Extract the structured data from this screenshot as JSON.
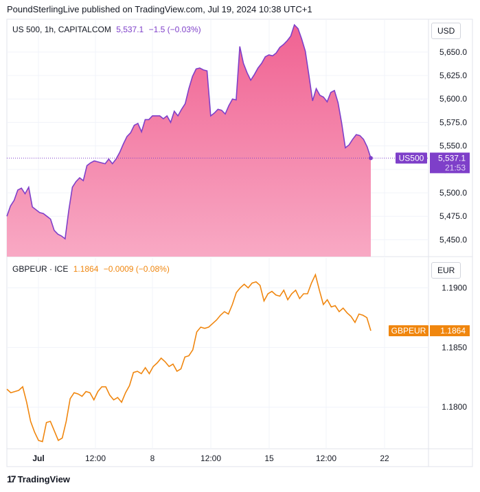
{
  "header": {
    "published": "PoundSterlingLive published on TradingView.com, Jul 19, 2024 10:38 UTC+1"
  },
  "footer": {
    "brand": "TradingView"
  },
  "colors": {
    "us500": "#7e3fc9",
    "us500_fill_top": "#f06292",
    "us500_fill_bottom": "#f8a9c4",
    "gbpeur": "#f0860e",
    "grid": "#f0f3fa",
    "border": "#e0e3eb"
  },
  "panes": {
    "us500": {
      "symbol": "US 500, 1h, CAPITALCOM",
      "last": "5,537.1",
      "change": "−1.5 (−0.03%)",
      "currency": "USD",
      "tag": "US500",
      "tag_value": "5,537.1",
      "tag_countdown": "21:53"
    },
    "gbpeur": {
      "symbol": "GBPEUR · ICE",
      "last": "1.1864",
      "change": "−0.0009 (−0.08%)",
      "currency": "EUR",
      "tag": "GBPEUR",
      "tag_value": "1.1864"
    }
  },
  "chart_data": [
    {
      "type": "area",
      "title": "US 500, 1h, CAPITALCOM",
      "ylim": [
        5432,
        5685
      ],
      "yticks": [
        "5,450.0",
        "5,475.0",
        "5,500.0",
        "5,525.0",
        "5,550.0",
        "5,575.0",
        "5,600.0",
        "5,625.0",
        "5,650.0"
      ],
      "ytick_values": [
        5450,
        5475,
        5500,
        5525,
        5550,
        5575,
        5600,
        5625,
        5650
      ],
      "x": [
        0,
        2,
        4,
        6,
        8,
        10,
        12,
        14,
        16,
        18,
        20,
        22,
        24,
        26,
        28,
        30,
        32,
        34,
        36,
        38,
        40,
        42,
        44,
        46,
        48,
        50,
        52,
        54,
        56,
        58,
        60,
        62,
        64,
        66,
        68,
        70,
        72,
        74,
        76,
        78,
        80,
        82,
        84,
        86,
        88,
        90,
        92,
        94,
        96,
        98,
        100,
        102,
        104,
        106,
        108,
        110,
        112,
        114,
        116,
        118,
        120,
        122,
        124,
        126,
        128,
        130,
        132,
        134,
        136,
        138,
        140,
        142,
        144,
        146,
        148,
        150,
        152,
        154,
        156,
        158,
        160,
        162,
        164,
        166,
        168,
        170,
        172,
        174,
        176,
        178,
        180,
        182,
        184,
        186,
        188,
        190,
        192,
        194,
        196,
        198,
        200,
        202,
        204,
        206,
        208,
        210,
        212,
        214,
        216,
        218,
        220,
        222,
        224,
        226,
        228,
        230,
        232,
        234,
        236,
        238,
        240,
        242,
        244,
        246,
        248,
        250,
        252,
        254,
        256,
        258,
        260,
        262,
        264,
        266,
        268,
        270,
        272,
        274,
        276,
        278,
        280,
        282,
        284,
        286,
        288,
        290,
        292,
        294,
        296,
        298,
        300,
        302,
        304,
        306,
        308,
        310,
        312,
        314
      ],
      "series": [
        {
          "values": [
            5475,
            5486,
            5492,
            5503,
            5505,
            5499,
            5506,
            5485,
            5482,
            5479,
            5478,
            5475,
            5472,
            5460,
            5456,
            5454,
            5451,
            5481,
            5506,
            5512,
            5516,
            5513,
            5529,
            5532,
            5534,
            5533,
            5532,
            5531,
            5536,
            5531,
            5536,
            5543,
            5552,
            5560,
            5564,
            5572,
            5574,
            5565,
            5578,
            5578,
            5582,
            5582,
            5582,
            5579,
            5582,
            5575,
            5587,
            5582,
            5589,
            5595,
            5611,
            5624,
            5632,
            5633,
            5631,
            5630,
            5582,
            5585,
            5589,
            5588,
            5584,
            5593,
            5600,
            5599,
            5656,
            5638,
            5628,
            5620,
            5626,
            5633,
            5638,
            5645,
            5647,
            5646,
            5649,
            5655,
            5658,
            5662,
            5667,
            5679,
            5675,
            5664,
            5651,
            5625,
            5598,
            5611,
            5604,
            5602,
            5597,
            5607,
            5609,
            5596,
            5574,
            5548,
            5551,
            5557,
            5562,
            5561,
            5557,
            5549,
            5537,
            5537,
            5537,
            5537,
            5537,
            5537,
            5537,
            5537,
            5537,
            5537,
            5537,
            5537,
            5537,
            5537,
            5537,
            5537,
            5537,
            5537,
            5537,
            5537,
            5537,
            5537,
            5537,
            5537,
            5537,
            5537,
            5537,
            5537,
            5537,
            5537,
            5537,
            5537,
            5537,
            5537,
            5537,
            5537,
            5537,
            5537,
            5537,
            5537,
            5537,
            5537,
            5537,
            5537,
            5537,
            5537,
            5537,
            5537,
            5537,
            5537,
            5537,
            5537,
            5537,
            5537,
            5537,
            5537,
            5537,
            5537
          ]
        }
      ]
    },
    {
      "type": "line",
      "title": "GBPEUR · ICE",
      "ylim": [
        1.1765,
        1.1925
      ],
      "yticks": [
        "1.1800",
        "1.1850",
        "1.1900"
      ],
      "ytick_values": [
        1.18,
        1.185,
        1.19
      ],
      "series": [
        {
          "values": [
            1.1815,
            1.1812,
            1.1813,
            1.1814,
            1.1817,
            1.1804,
            1.1788,
            1.1779,
            1.1772,
            1.1771,
            1.1787,
            1.1788,
            1.178,
            1.1772,
            1.1774,
            1.1788,
            1.1807,
            1.1812,
            1.1811,
            1.1809,
            1.1813,
            1.1812,
            1.1806,
            1.1813,
            1.1817,
            1.1817,
            1.181,
            1.1806,
            1.1808,
            1.1804,
            1.1812,
            1.1818,
            1.1829,
            1.183,
            1.1828,
            1.1833,
            1.1828,
            1.1834,
            1.1837,
            1.1841,
            1.1838,
            1.1834,
            1.1836,
            1.183,
            1.1832,
            1.1842,
            1.1843,
            1.1848,
            1.1863,
            1.1867,
            1.1866,
            1.1867,
            1.187,
            1.1873,
            1.1877,
            1.188,
            1.1878,
            1.1886,
            1.1896,
            1.19,
            1.1903,
            1.19,
            1.1904,
            1.1905,
            1.1902,
            1.1889,
            1.1895,
            1.1897,
            1.1894,
            1.1893,
            1.1898,
            1.189,
            1.1895,
            1.1898,
            1.1891,
            1.1895,
            1.1895,
            1.1904,
            1.1911,
            1.1898,
            1.1886,
            1.189,
            1.1884,
            1.1885,
            1.188,
            1.1883,
            1.1879,
            1.1876,
            1.1871,
            1.1878,
            1.1877,
            1.1875,
            1.1864
          ]
        }
      ]
    }
  ],
  "xaxis": {
    "labels": [
      "Jul",
      "12:00",
      "8",
      "12:00",
      "15",
      "12:00",
      "22"
    ]
  }
}
